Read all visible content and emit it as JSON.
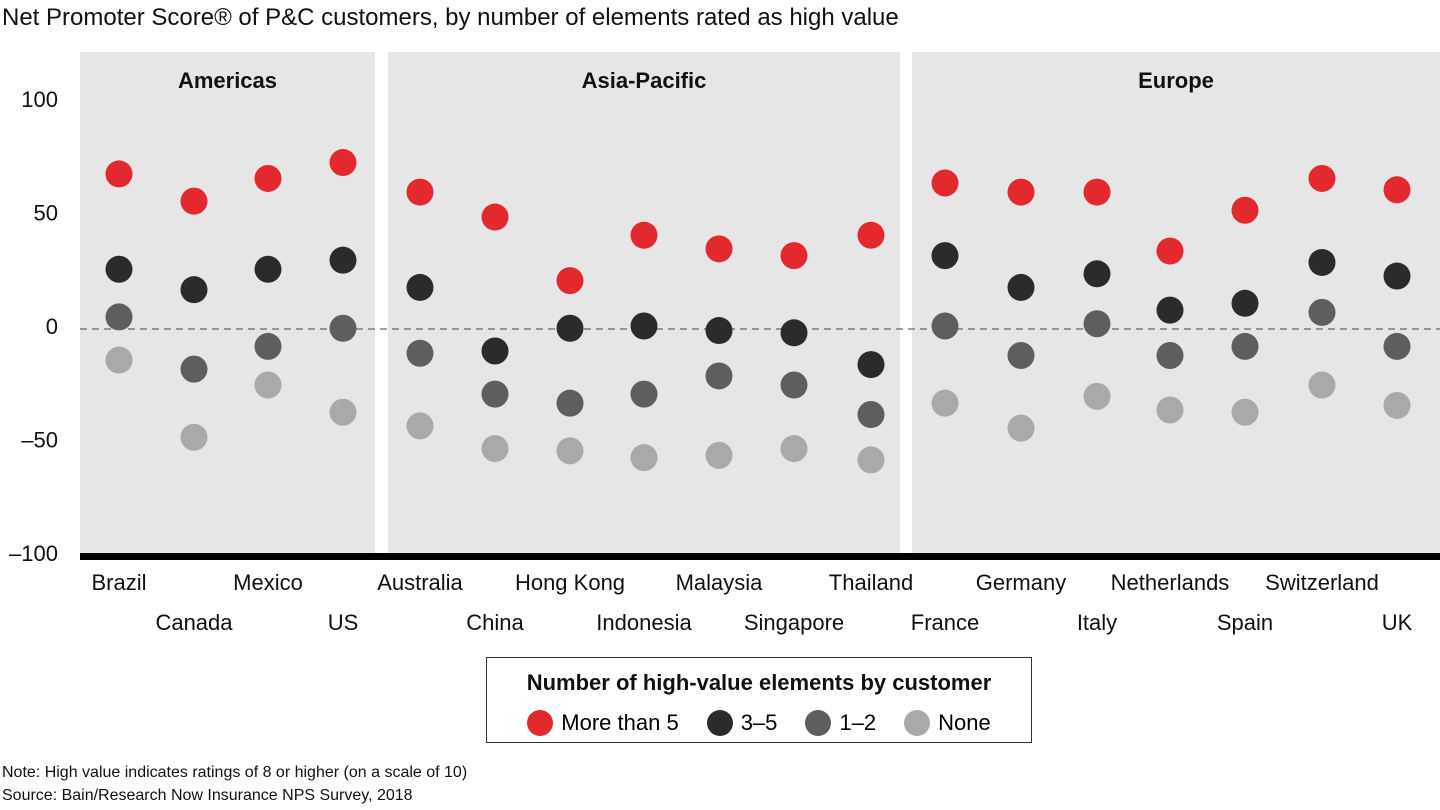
{
  "title": "Net Promoter Score® of P&C customers, by number of elements rated as high value",
  "chart_data": {
    "type": "scatter",
    "ylim": [
      -100,
      120
    ],
    "yticks": [
      100,
      50,
      0,
      -50,
      -100
    ],
    "ytick_labels": [
      "100",
      "50",
      "0",
      "–50",
      "–100"
    ],
    "groups": [
      {
        "name": "Americas",
        "countries": [
          "Brazil",
          "Canada",
          "Mexico",
          "US"
        ]
      },
      {
        "name": "Asia-Pacific",
        "countries": [
          "Australia",
          "China",
          "Hong Kong",
          "Indonesia",
          "Malaysia",
          "Singapore",
          "Thailand"
        ]
      },
      {
        "name": "Europe",
        "countries": [
          "France",
          "Germany",
          "Italy",
          "Netherlands",
          "Spain",
          "Switzerland",
          "UK"
        ]
      }
    ],
    "categories": [
      "Brazil",
      "Canada",
      "Mexico",
      "US",
      "Australia",
      "China",
      "Hong Kong",
      "Indonesia",
      "Malaysia",
      "Singapore",
      "Thailand",
      "France",
      "Germany",
      "Italy",
      "Netherlands",
      "Spain",
      "Switzerland",
      "UK"
    ],
    "series": [
      {
        "name": "More than 5",
        "color": "#e3292d",
        "values": [
          67,
          55,
          65,
          72,
          59,
          48,
          20,
          40,
          34,
          31,
          40,
          63,
          59,
          59,
          33,
          51,
          65,
          60
        ]
      },
      {
        "name": "3–5",
        "color": "#2b2b2b",
        "values": [
          25,
          16,
          25,
          29,
          17,
          -11,
          -1,
          0,
          -2,
          -3,
          -17,
          31,
          17,
          23,
          7,
          10,
          28,
          22
        ]
      },
      {
        "name": "1–2",
        "color": "#5e5e5e",
        "values": [
          4,
          -19,
          -9,
          -1,
          -12,
          -30,
          -34,
          -30,
          -22,
          -26,
          -39,
          0,
          -13,
          1,
          -13,
          -9,
          6,
          -9
        ]
      },
      {
        "name": "None",
        "color": "#a9a9ab",
        "values": [
          -15,
          -49,
          -26,
          -38,
          -44,
          -54,
          -55,
          -58,
          -57,
          -54,
          -59,
          -34,
          -45,
          -31,
          -37,
          -38,
          -26,
          -35
        ]
      }
    ],
    "legend_title": "Number of high-value elements by customer",
    "legend_placement": "bottom-center",
    "reference_line": 0
  },
  "notes": {
    "note": "Note: High value indicates ratings of 8 or higher (on a scale of 10)",
    "source": "Source: Bain/Research Now Insurance NPS Survey, 2018"
  }
}
